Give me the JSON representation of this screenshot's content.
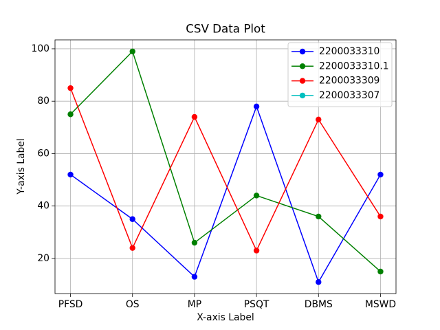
{
  "chart_data": {
    "type": "line",
    "title": "CSV Data Plot",
    "xlabel": "X-axis Label",
    "ylabel": "Y-axis Label",
    "categories": [
      "PFSD",
      "OS",
      "MP",
      "PSQT",
      "DBMS",
      "MSWD"
    ],
    "series": [
      {
        "name": "2200033310",
        "color": "#0000ff",
        "values": [
          52,
          35,
          13,
          78,
          11,
          52
        ]
      },
      {
        "name": "2200033310.1",
        "color": "#008000",
        "values": [
          75,
          99,
          26,
          44,
          36,
          15
        ]
      },
      {
        "name": "2200033309",
        "color": "#ff0000",
        "values": [
          85,
          24,
          74,
          23,
          73,
          36
        ]
      },
      {
        "name": "2200033307",
        "color": "#00bfbf",
        "values": [
          null,
          null,
          null,
          null,
          null,
          null
        ]
      }
    ],
    "ylim": [
      6.6,
      103.4
    ],
    "yticks": [
      20,
      40,
      60,
      80,
      100
    ],
    "grid": true,
    "legend": "upper right"
  }
}
